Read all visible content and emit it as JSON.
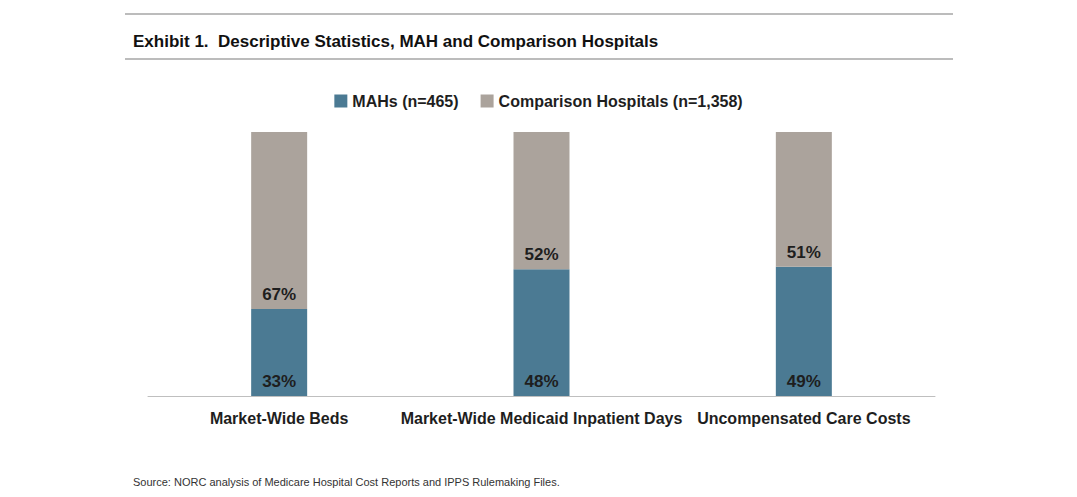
{
  "chart_data": {
    "type": "bar",
    "title": "Exhibit 1.  Descriptive Statistics, MAH and Comparison Hospitals",
    "source": "Source: NORC analysis of Medicare Hospital Cost Reports and IPPS Rulemaking Files.",
    "categories": [
      "Market-Wide Beds",
      "Market-Wide Medicaid Inpatient Days",
      "Uncompensated Care Costs"
    ],
    "series": [
      {
        "name": "MAHs (n=465)",
        "color": "#4b7a93",
        "values": [
          33,
          48,
          49
        ],
        "value_labels": [
          "33%",
          "48%",
          "49%"
        ]
      },
      {
        "name": "Comparison Hospitals (n=1,358)",
        "color": "#aba39c",
        "values": [
          67,
          52,
          51
        ],
        "value_labels": [
          "67%",
          "52%",
          "51%"
        ]
      }
    ],
    "ylim": [
      0,
      100
    ],
    "stacked": true,
    "data_labels": true,
    "legend": "top",
    "tick_labels": "x",
    "grid": false
  }
}
